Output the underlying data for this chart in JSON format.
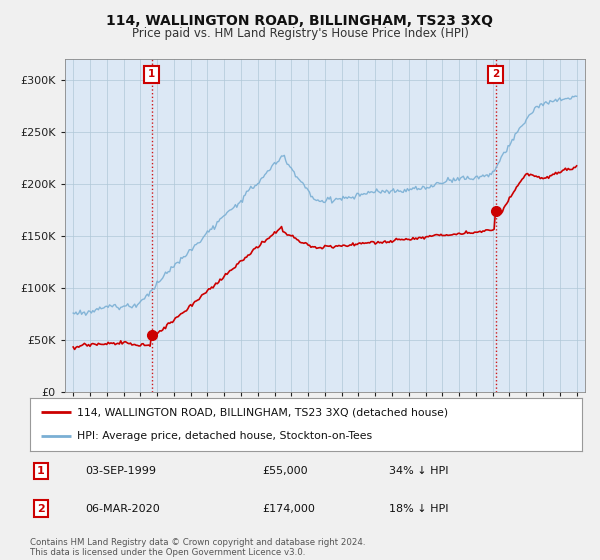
{
  "title": "114, WALLINGTON ROAD, BILLINGHAM, TS23 3XQ",
  "subtitle": "Price paid vs. HM Land Registry's House Price Index (HPI)",
  "legend_line1": "114, WALLINGTON ROAD, BILLINGHAM, TS23 3XQ (detached house)",
  "legend_line2": "HPI: Average price, detached house, Stockton-on-Tees",
  "annotation1_date": "03-SEP-1999",
  "annotation1_price": "£55,000",
  "annotation1_hpi": "34% ↓ HPI",
  "annotation2_date": "06-MAR-2020",
  "annotation2_price": "£174,000",
  "annotation2_hpi": "18% ↓ HPI",
  "footer": "Contains HM Land Registry data © Crown copyright and database right 2024.\nThis data is licensed under the Open Government Licence v3.0.",
  "house_color": "#cc0000",
  "hpi_color": "#7aafd4",
  "background_color": "#f0f0f0",
  "plot_bg_color": "#dce8f5",
  "annotation_color": "#cc0000",
  "ylim": [
    0,
    320000
  ],
  "yticks": [
    0,
    50000,
    100000,
    150000,
    200000,
    250000,
    300000
  ],
  "xlim_start": 1994.5,
  "xlim_end": 2025.5,
  "ann1_x": 1999.67,
  "ann1_y": 55000,
  "ann2_x": 2020.17,
  "ann2_y": 174000
}
